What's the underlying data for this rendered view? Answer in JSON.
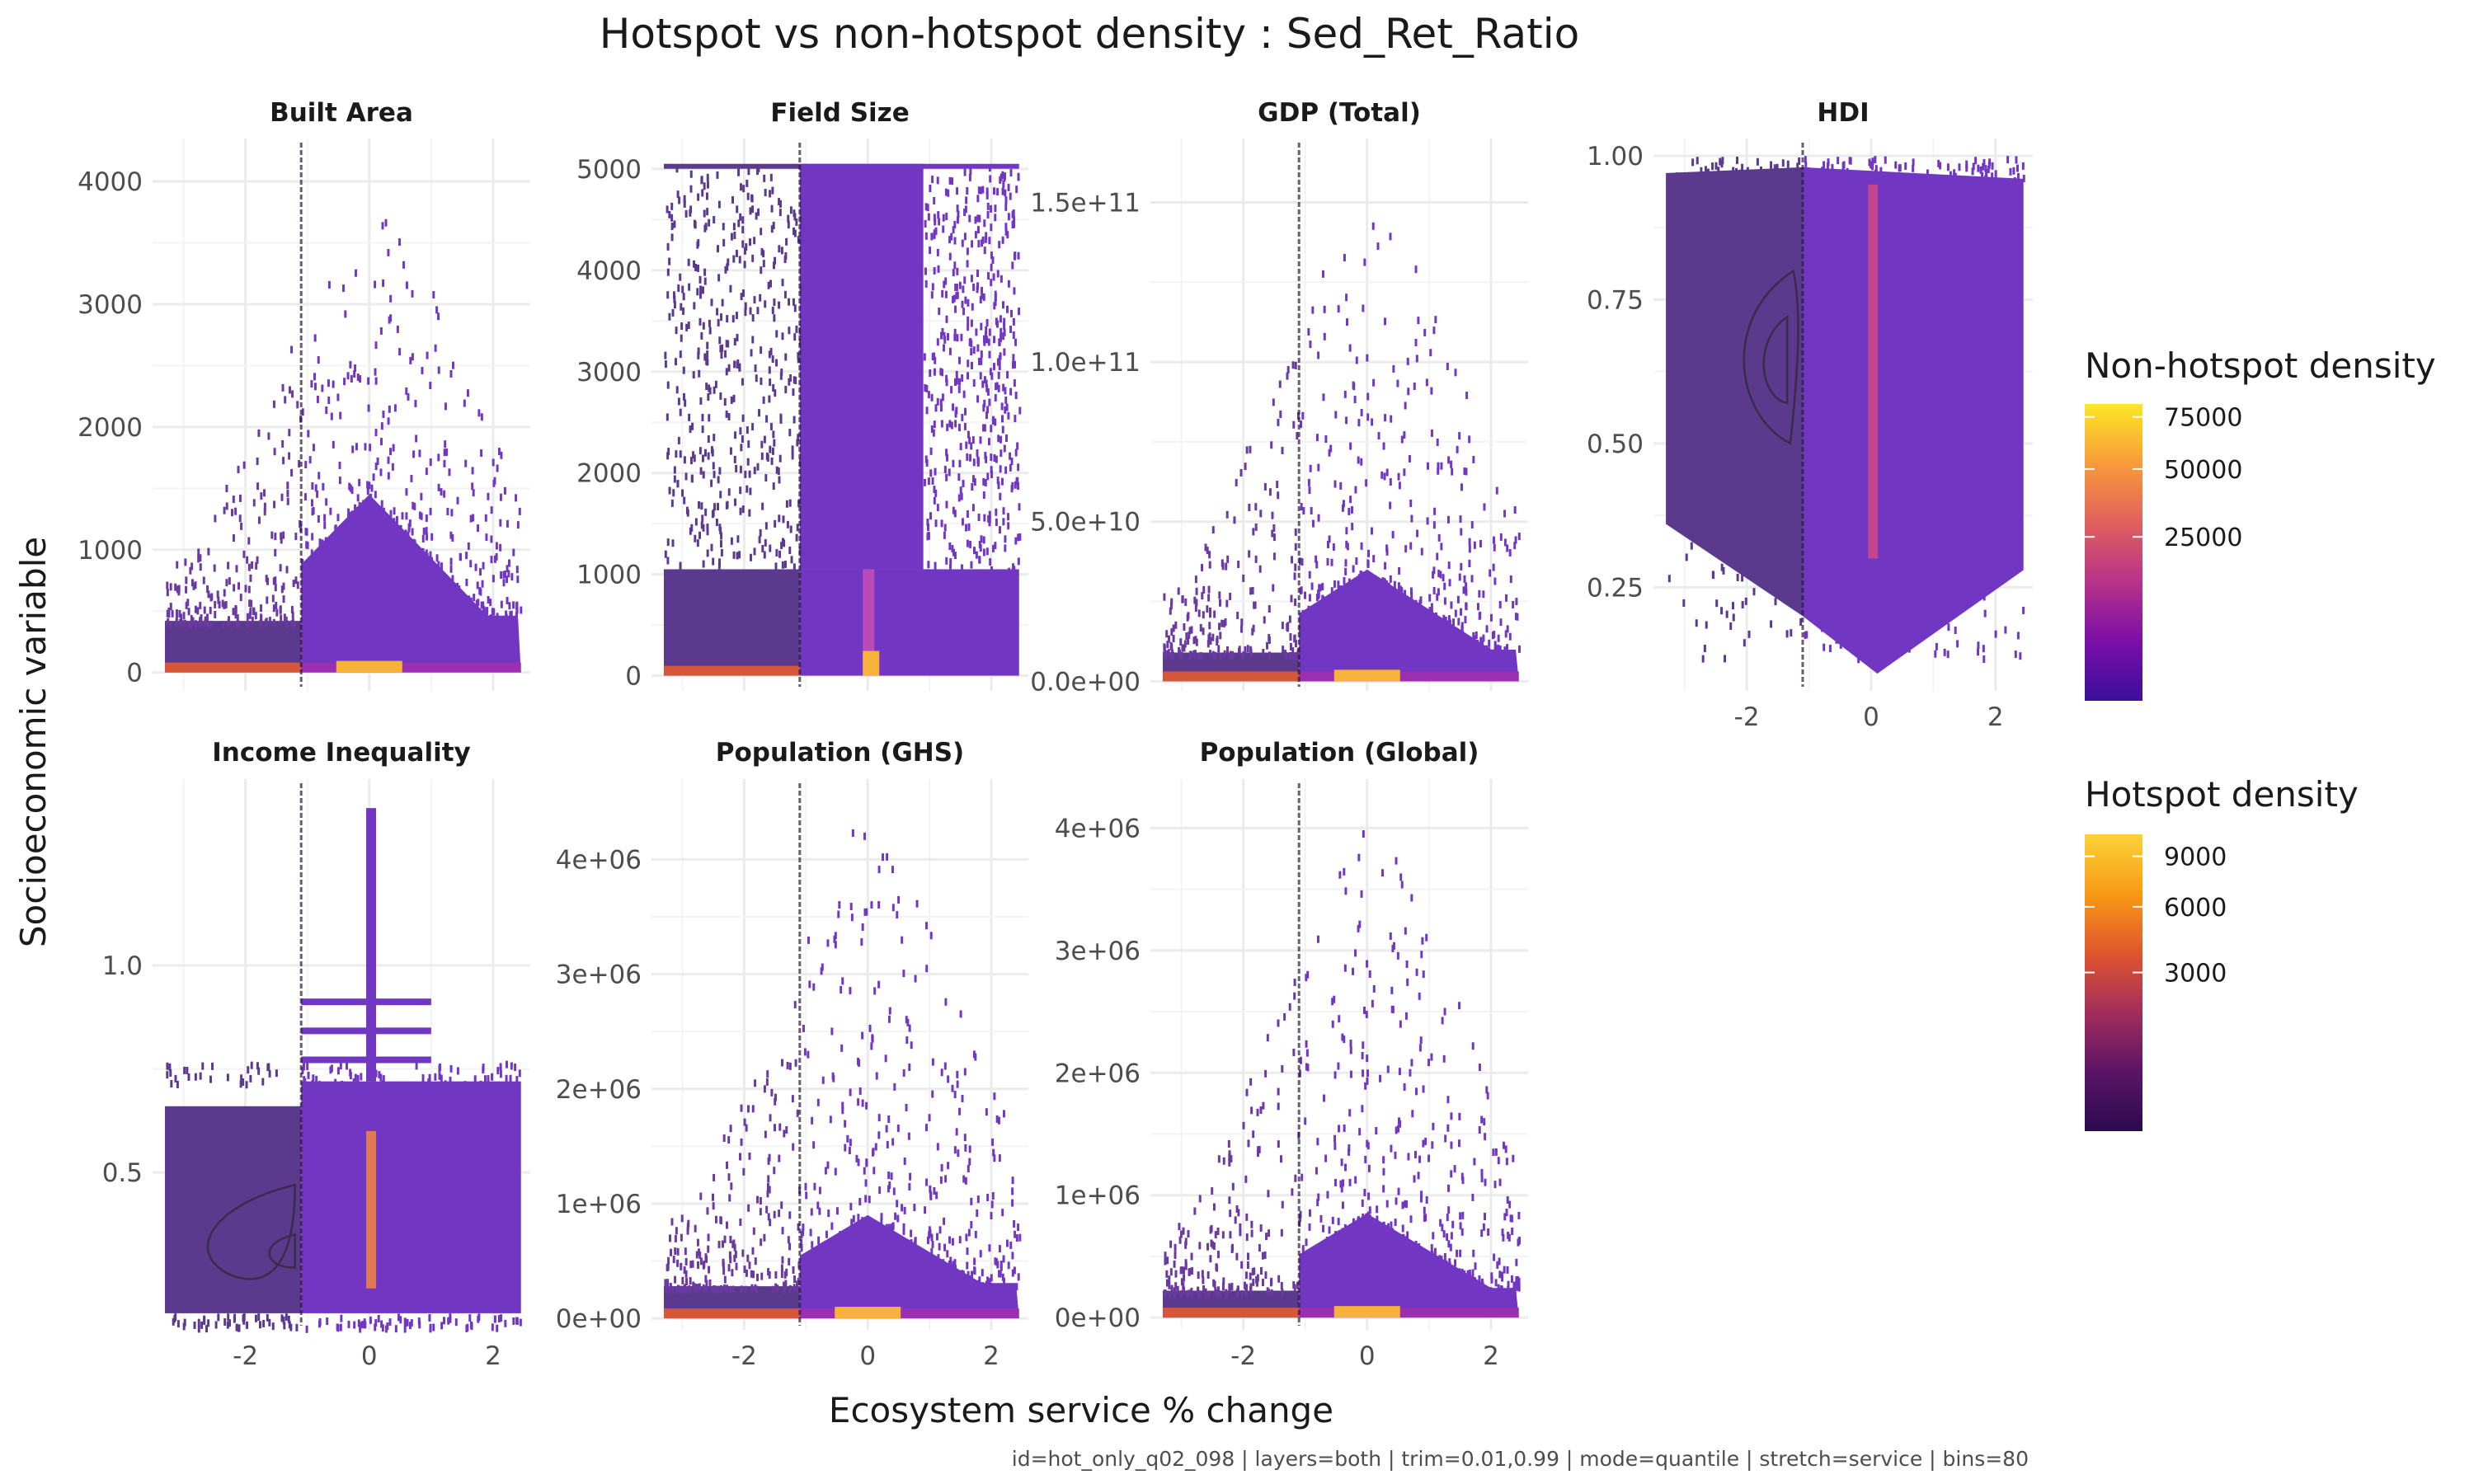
{
  "chart_data": {
    "type": "heatmap",
    "title": "Hotspot vs non-hotspot density : Sed_Ret_Ratio",
    "xlabel": "Ecosystem service % change",
    "ylabel": "Socioeconomic variable",
    "caption": "id=hot_only_q02_098 | layers=both | trim=0.01,0.99 | mode=quantile | stretch=service | bins=80",
    "hotspot_threshold_x": -1.1,
    "xlim": [
      -3.5,
      2.6
    ],
    "x_ticks": [
      {
        "value": -2,
        "label": "-2"
      },
      {
        "value": 0,
        "label": "0"
      },
      {
        "value": 2,
        "label": "2"
      }
    ],
    "panels": [
      {
        "name": "Built Area",
        "ylim": [
          -150,
          4350
        ],
        "y_ticks": [
          {
            "value": 0,
            "label": "0"
          },
          {
            "value": 1000,
            "label": "1000"
          },
          {
            "value": 2000,
            "label": "2000"
          },
          {
            "value": 3000,
            "label": "3000"
          },
          {
            "value": 4000,
            "label": "4000"
          }
        ],
        "dense": {
          "type": "wedge",
          "bottom": 0,
          "plateau": 1450,
          "hot_top": 420,
          "peak_x": 0,
          "scatter_max": 4050
        },
        "show_x_axis": false
      },
      {
        "name": "Field Size",
        "ylim": [
          -150,
          5300
        ],
        "y_ticks": [
          {
            "value": 0,
            "label": "0"
          },
          {
            "value": 1000,
            "label": "1000"
          },
          {
            "value": 2000,
            "label": "2000"
          },
          {
            "value": 3000,
            "label": "3000"
          },
          {
            "value": 4000,
            "label": "4000"
          },
          {
            "value": 5000,
            "label": "5000"
          }
        ],
        "dense": {
          "type": "field",
          "bottom": 0,
          "top": 5050,
          "mid": 1050,
          "center_left": -1.1,
          "center_right": 0.9
        },
        "show_x_axis": false
      },
      {
        "name": "GDP (Total)",
        "ylim": [
          -3000000000.0,
          170000000000.0
        ],
        "y_ticks": [
          {
            "value": 0,
            "label": "0.0e+00"
          },
          {
            "value": 50000000000.0,
            "label": "5.0e+10"
          },
          {
            "value": 100000000000.0,
            "label": "1.0e+11"
          },
          {
            "value": 150000000000.0,
            "label": "1.5e+11"
          }
        ],
        "dense": {
          "type": "wedge",
          "bottom": 0,
          "plateau": 35000000000.0,
          "hot_top": 9000000000.0,
          "peak_x": 0,
          "scatter_max": 162000000000.0
        },
        "show_x_axis": false
      },
      {
        "name": "HDI",
        "ylim": [
          0.07,
          1.03
        ],
        "y_ticks": [
          {
            "value": 0.25,
            "label": "0.25"
          },
          {
            "value": 0.5,
            "label": "0.50"
          },
          {
            "value": 0.75,
            "label": "0.75"
          },
          {
            "value": 1.0,
            "label": "1.00"
          }
        ],
        "dense": {
          "type": "hdi",
          "bottom": 0.1,
          "top": 0.98
        },
        "show_x_axis": true
      },
      {
        "name": "Income Inequality",
        "ylim": [
          0.12,
          1.45
        ],
        "y_ticks": [
          {
            "value": 0.5,
            "label": "0.5"
          },
          {
            "value": 1.0,
            "label": "1.0"
          }
        ],
        "dense": {
          "type": "ineq",
          "bottom": 0.16,
          "top": 0.72,
          "hot_top": 0.66
        },
        "show_x_axis": true
      },
      {
        "name": "Population (GHS)",
        "ylim": [
          -100000.0,
          4700000.0
        ],
        "y_ticks": [
          {
            "value": 0,
            "label": "0e+00"
          },
          {
            "value": 1000000,
            "label": "1e+06"
          },
          {
            "value": 2000000,
            "label": "2e+06"
          },
          {
            "value": 3000000,
            "label": "3e+06"
          },
          {
            "value": 4000000,
            "label": "4e+06"
          }
        ],
        "dense": {
          "type": "wedge",
          "bottom": 0,
          "plateau": 900000,
          "hot_top": 280000,
          "peak_x": 0,
          "scatter_max": 4550000
        },
        "show_x_axis": true
      },
      {
        "name": "Population (Global)",
        "ylim": [
          -100000.0,
          4400000.0
        ],
        "y_ticks": [
          {
            "value": 0,
            "label": "0e+00"
          },
          {
            "value": 1000000,
            "label": "1e+06"
          },
          {
            "value": 2000000,
            "label": "2e+06"
          },
          {
            "value": 3000000,
            "label": "3e+06"
          },
          {
            "value": 4000000,
            "label": "4e+06"
          }
        ],
        "dense": {
          "type": "wedge",
          "bottom": 0,
          "plateau": 850000,
          "hot_top": 220000,
          "peak_x": 0,
          "scatter_max": 4250000
        },
        "show_x_axis": true
      }
    ],
    "legends": [
      {
        "title": "Non-hotspot density",
        "ticks": [
          {
            "value": 75000,
            "label": "75000"
          },
          {
            "value": 50000,
            "label": "50000"
          },
          {
            "value": 25000,
            "label": "25000"
          }
        ],
        "scale_max": 82000,
        "colors": [
          "#3b0f9c",
          "#7a0fa8",
          "#b83289",
          "#e0605e",
          "#f89b3a",
          "#fde725"
        ]
      },
      {
        "title": "Hotspot density",
        "ticks": [
          {
            "value": 9000,
            "label": "9000"
          },
          {
            "value": 6000,
            "label": "6000"
          },
          {
            "value": 3000,
            "label": "3000"
          }
        ],
        "scale_max": 10500,
        "colors": [
          "#2b0a4e",
          "#5a1466",
          "#a32d5c",
          "#e0562e",
          "#f89a14",
          "#fcd338"
        ]
      }
    ]
  }
}
